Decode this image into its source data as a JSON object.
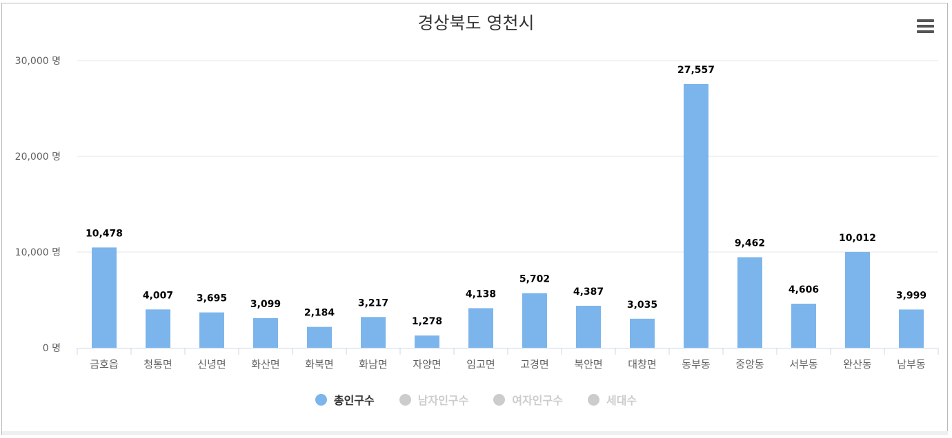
{
  "chart_data": {
    "type": "bar",
    "title": "경상북도 영천시",
    "categories": [
      "금호읍",
      "청통면",
      "신녕면",
      "화산면",
      "화북면",
      "화남면",
      "자양면",
      "임고면",
      "고경면",
      "북안면",
      "대창면",
      "동부동",
      "중앙동",
      "서부동",
      "완산동",
      "남부동"
    ],
    "series": [
      {
        "name": "총인구수",
        "values": [
          10478,
          4007,
          3695,
          3099,
          2184,
          3217,
          1278,
          4138,
          5702,
          4387,
          3035,
          27557,
          9462,
          4606,
          10012,
          3999
        ],
        "active": true
      }
    ],
    "data_labels": [
      "10,478",
      "4,007",
      "3,695",
      "3,099",
      "2,184",
      "3,217",
      "1,278",
      "4,138",
      "5,702",
      "4,387",
      "3,035",
      "27,557",
      "9,462",
      "4,606",
      "10,012",
      "3,999"
    ],
    "ylim": [
      0,
      30000
    ],
    "yticks": [
      0,
      10000,
      20000,
      30000
    ],
    "ytick_labels": [
      "0 명",
      "10,000 명",
      "20,000 명",
      "30,000 명"
    ],
    "grid": true,
    "legend_position": "bottom-center",
    "bar_color": "#7cb5ec"
  },
  "legend": [
    {
      "label": "총인구수",
      "color": "#7cb5ec",
      "active": true
    },
    {
      "label": "남자인구수",
      "color": "#cccccc",
      "active": false
    },
    {
      "label": "여자인구수",
      "color": "#cccccc",
      "active": false
    },
    {
      "label": "세대수",
      "color": "#cccccc",
      "active": false
    }
  ],
  "menu_icon": "hamburger-menu-icon"
}
